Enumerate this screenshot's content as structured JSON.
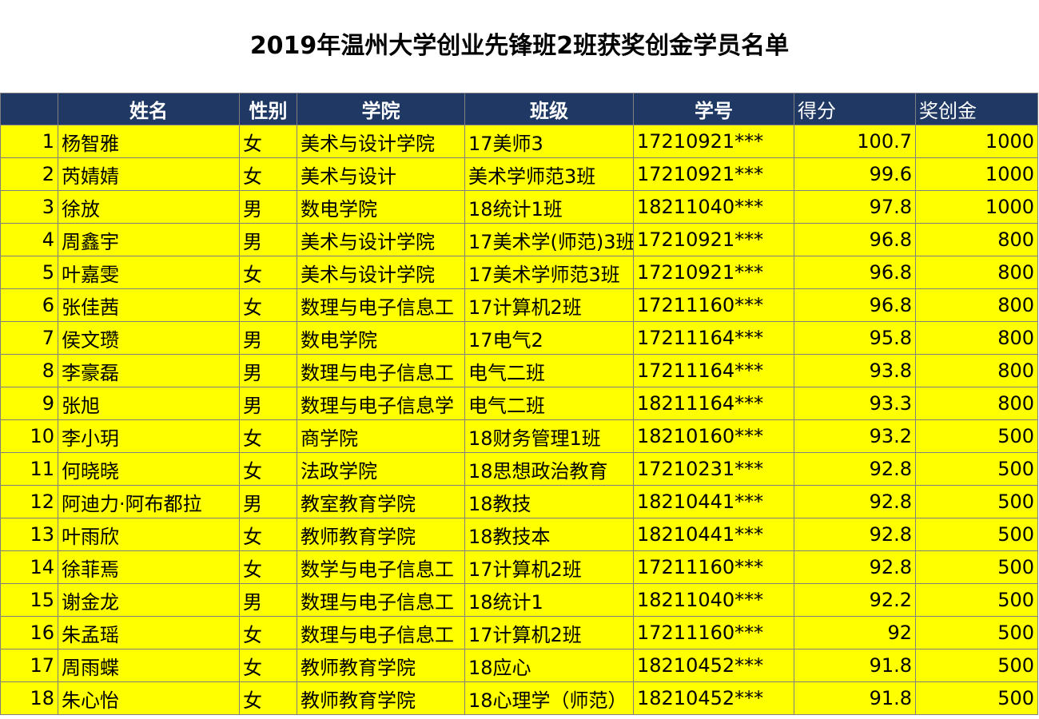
{
  "title": "2019年温州大学创业先锋班2班获奖创金学员名单",
  "table": {
    "header": [
      "",
      "姓名",
      "性别",
      "学院",
      "班级",
      "学号",
      "得分",
      "奖创金"
    ],
    "rows": [
      [
        1,
        "杨智雅",
        "女",
        "美术与设计学院",
        "17美师3",
        "17210921***",
        100.7,
        1000
      ],
      [
        2,
        "芮婧婧",
        "女",
        "美术与设计",
        "美术学师范3班",
        "17210921***",
        99.6,
        1000
      ],
      [
        3,
        "徐放",
        "男",
        "数电学院",
        "18统计1班",
        "18211040***",
        97.8,
        1000
      ],
      [
        4,
        "周鑫宇",
        "男",
        "美术与设计学院",
        "17美术学(师范)3班",
        "17210921***",
        96.8,
        800
      ],
      [
        5,
        "叶嘉雯",
        "女",
        "美术与设计学院",
        "17美术学师范3班",
        "17210921***",
        96.8,
        800
      ],
      [
        6,
        "张佳茜",
        "女",
        "数理与电子信息工",
        "17计算机2班",
        "17211160***",
        96.8,
        800
      ],
      [
        7,
        "侯文瓒",
        "男",
        "数电学院",
        "17电气2",
        "17211164***",
        95.8,
        800
      ],
      [
        8,
        "李豪磊",
        "男",
        "数理与电子信息工",
        "电气二班",
        "17211164***",
        93.8,
        800
      ],
      [
        9,
        "张旭",
        "男",
        "数理与电子信息学",
        "电气二班",
        "18211164***",
        93.3,
        800
      ],
      [
        10,
        "李小玥",
        "女",
        "商学院",
        "18财务管理1班",
        "18210160***",
        93.2,
        500
      ],
      [
        11,
        "何晓晓",
        "女",
        "法政学院",
        "18思想政治教育",
        "17210231***",
        92.8,
        500
      ],
      [
        12,
        "阿迪力·阿布都拉",
        "男",
        "教室教育学院",
        "18教技",
        "18210441***",
        92.8,
        500
      ],
      [
        13,
        "叶雨欣",
        "女",
        "教师教育学院",
        "18教技本",
        "18210441***",
        92.8,
        500
      ],
      [
        14,
        "徐菲焉",
        "女",
        "数学与电子信息工",
        "17计算机2班",
        "17211160***",
        92.8,
        500
      ],
      [
        15,
        "谢金龙",
        "男",
        "数理与电子信息工",
        "18统计1",
        "18211040***",
        92.2,
        500
      ],
      [
        16,
        "朱孟瑶",
        "女",
        "数理与电子信息工",
        "17计算机2班",
        "17211160***",
        92,
        500
      ],
      [
        17,
        "周雨蝶",
        "女",
        "教师教育学院",
        "18应心",
        "18210452***",
        91.8,
        500
      ],
      [
        18,
        "朱心怡",
        "女",
        "教师教育学院",
        "18心理学（师范）",
        "18210452***",
        91.8,
        500
      ]
    ]
  }
}
